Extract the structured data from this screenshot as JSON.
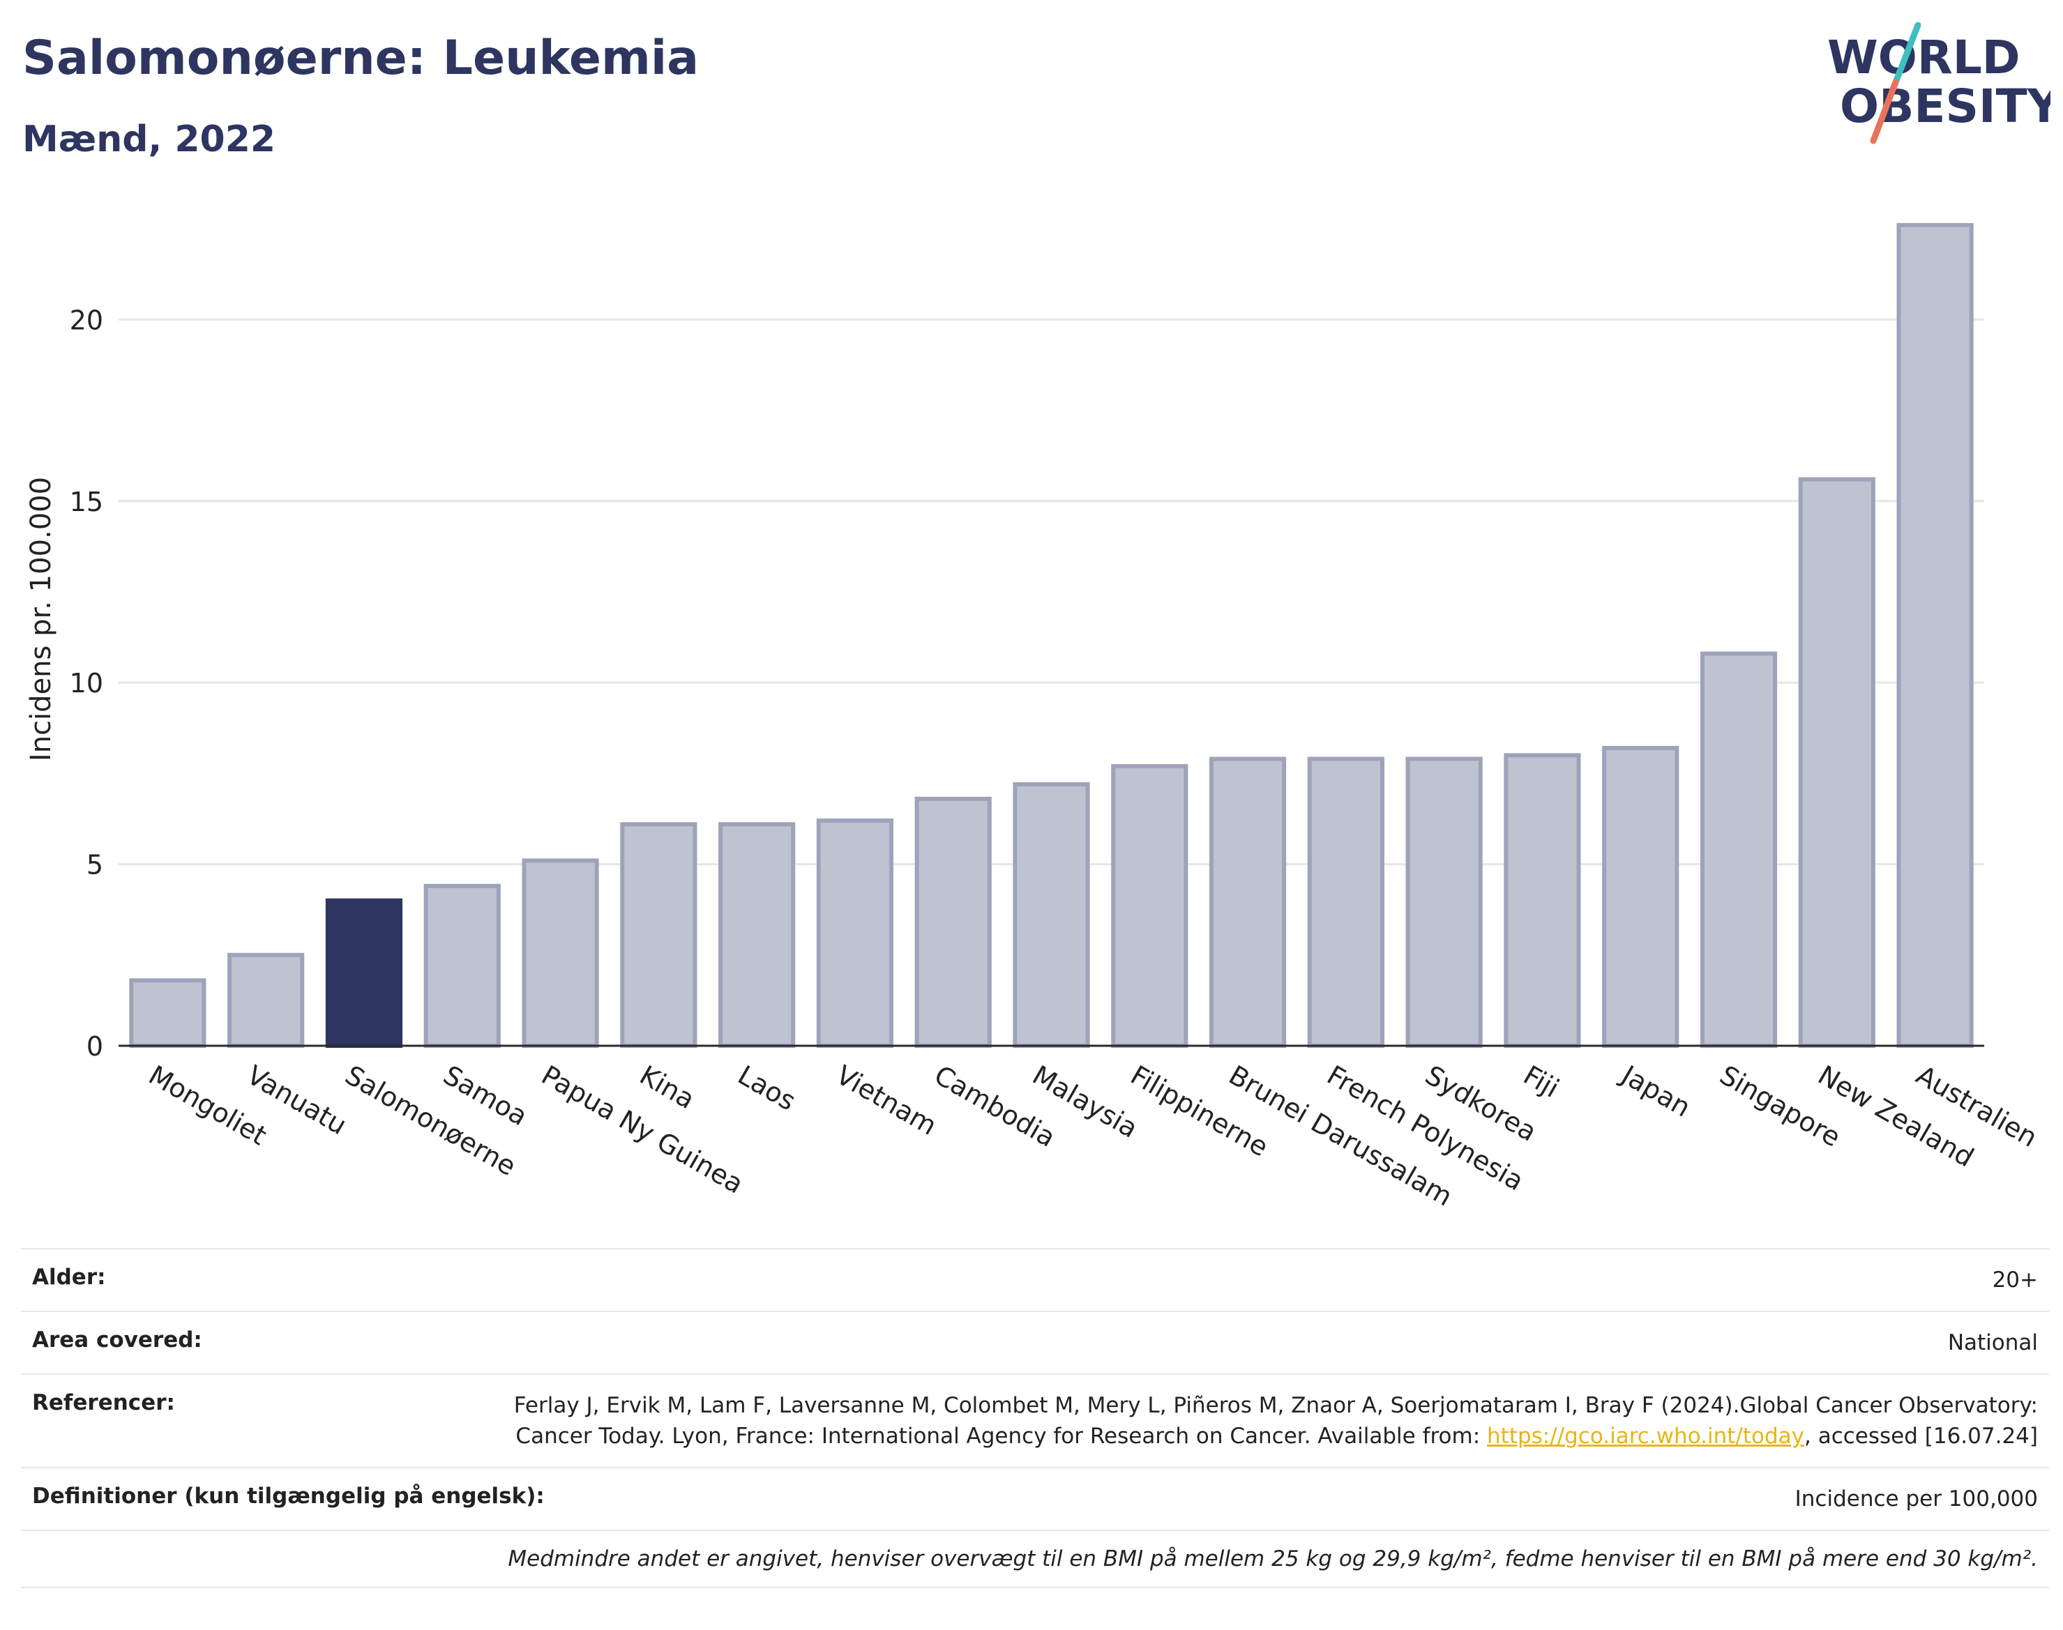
{
  "header": {
    "title": "Salomonøerne: Leukemia",
    "subtitle": "Mænd, 2022"
  },
  "logo": {
    "line1": "WORLD",
    "line2": "OBESITY",
    "colors": {
      "text": "#2d3560",
      "slash_top": "#3fbfbf",
      "slash_bottom": "#e8735a"
    }
  },
  "chart_data": {
    "type": "bar",
    "categories": [
      "Mongoliet",
      "Vanuatu",
      "Salomonøerne",
      "Samoa",
      "Papua Ny Guinea",
      "Kina",
      "Laos",
      "Vietnam",
      "Cambodia",
      "Malaysia",
      "Filippinerne",
      "Brunei Darussalam",
      "French Polynesia",
      "Sydkorea",
      "Fiji",
      "Japan",
      "Singapore",
      "New Zealand",
      "Australien"
    ],
    "values": [
      1.8,
      2.5,
      4.0,
      4.4,
      5.1,
      6.1,
      6.1,
      6.2,
      6.8,
      7.2,
      7.7,
      7.9,
      7.9,
      7.9,
      8.0,
      8.2,
      10.8,
      15.6,
      22.6
    ],
    "highlight": "Salomonøerne",
    "ylabel": "Incidens pr. 100.000",
    "xlabel": "",
    "ylim": [
      0,
      24
    ],
    "yticks": [
      0,
      5,
      10,
      15,
      20
    ],
    "grid": true,
    "colors": {
      "bar": "#bfc3d1",
      "bar_border": "#9ea3ba",
      "highlight": "#2d3560",
      "grid": "#e4e6ee",
      "axis": "#2a2a2a"
    }
  },
  "meta": {
    "age_label": "Alder:",
    "age_value": "20+",
    "area_label": "Area covered:",
    "area_value": "National",
    "ref_label": "Referencer:",
    "ref_text_1": "Ferlay J, Ervik M, Lam F, Laversanne M, Colombet M, Mery L, Piñeros M, Znaor A, Soerjomataram I, Bray F (2024).Global Cancer Observatory: Cancer Today. Lyon, France: International Agency for Research on Cancer. Available from: ",
    "ref_link": "https://gco.iarc.who.int/today",
    "ref_text_2": ", accessed [16.07.24]",
    "def_label": "Definitioner (kun tilgængelig på engelsk):",
    "def_value": "Incidence per 100,000",
    "note": "Medmindre andet er angivet, henviser overvægt til en BMI på mellem 25 kg og 29,9 kg/m², fedme henviser til en BMI på mere end 30 kg/m²."
  }
}
